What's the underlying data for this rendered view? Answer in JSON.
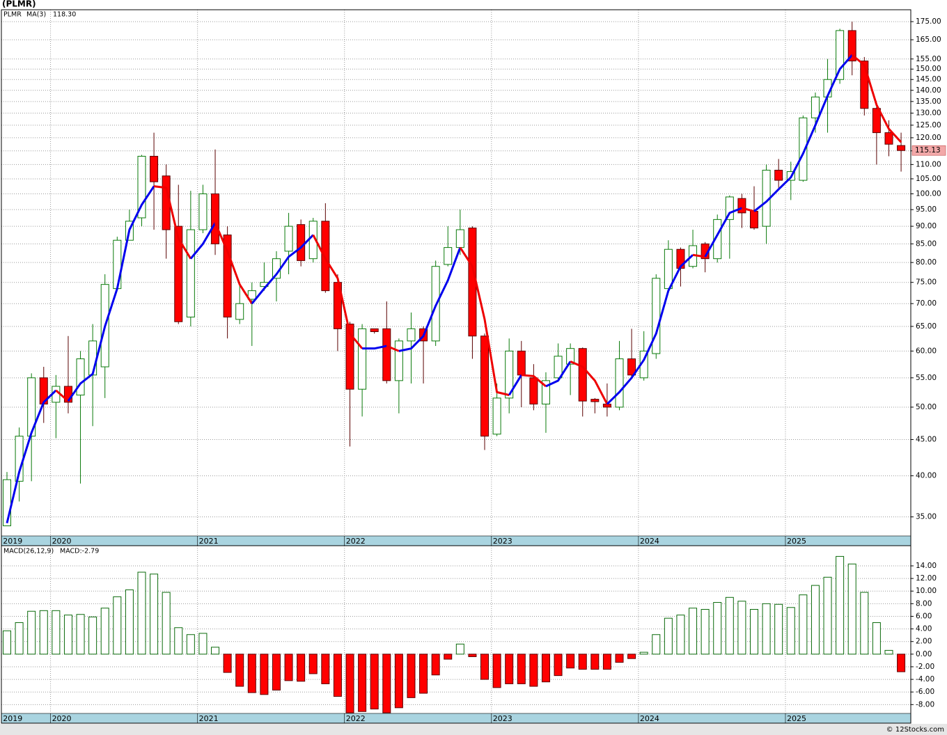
{
  "chart_data": [
    {
      "type": "candlestick",
      "title": "(PLMR)",
      "name": "PLMR",
      "log_scale": true,
      "grid": true,
      "up_color": "#0a7a0a",
      "down_color": "#ff0000",
      "categories": [
        "2019",
        null,
        null,
        null,
        "2020",
        null,
        null,
        null,
        null,
        null,
        null,
        null,
        null,
        null,
        null,
        null,
        "2021",
        null,
        null,
        null,
        null,
        null,
        null,
        null,
        null,
        null,
        null,
        null,
        "2022",
        null,
        null,
        null,
        null,
        null,
        null,
        null,
        null,
        null,
        null,
        null,
        "2023",
        null,
        null,
        null,
        null,
        null,
        null,
        null,
        null,
        null,
        null,
        null,
        "2024",
        null,
        null,
        null,
        null,
        null,
        null,
        null,
        null,
        null,
        null,
        null,
        "2025",
        null,
        null,
        null,
        null,
        null,
        null,
        null,
        null,
        null
      ],
      "open": [
        34,
        39.3,
        45.5,
        55,
        50.8,
        53.5,
        52,
        55.5,
        57,
        73.5,
        86,
        92.5,
        113,
        106,
        90,
        67,
        89,
        100,
        87.5,
        66.5,
        71,
        74,
        76,
        83,
        90.5,
        81,
        91.5,
        75,
        65.5,
        53,
        64.5,
        64.5,
        54.5,
        62,
        64.5,
        62,
        79.5,
        84,
        89.5,
        63,
        45.8,
        51.5,
        60,
        55,
        50.5,
        55,
        57.5,
        60.5,
        51.3,
        50.5,
        50,
        58.5,
        55,
        59.5,
        73.5,
        83.5,
        79,
        85,
        81,
        92,
        98.5,
        94.5,
        90,
        108,
        104.5,
        104.5,
        128,
        137,
        145,
        170,
        154,
        132,
        122,
        117
      ],
      "high": [
        40.5,
        46.8,
        55.8,
        57,
        55.5,
        63,
        60,
        65.5,
        77,
        87,
        95,
        113.5,
        122,
        110,
        103,
        101,
        103,
        115.5,
        90,
        75,
        75,
        80,
        83,
        94,
        92,
        92.5,
        97,
        77,
        66,
        65.5,
        64.5,
        70.5,
        62.5,
        68,
        65,
        80.5,
        90,
        95,
        90,
        63.5,
        54,
        62.5,
        62,
        57.5,
        56,
        61.5,
        61.5,
        60.7,
        51.5,
        54,
        62,
        64.5,
        64,
        77,
        86,
        84,
        89,
        85.5,
        93.5,
        99.5,
        100,
        102.5,
        110,
        112,
        111,
        129,
        139,
        155,
        171,
        175,
        156,
        133,
        127,
        122
      ],
      "low": [
        34,
        36.8,
        39.3,
        47.5,
        45.2,
        49,
        39,
        47,
        51.5,
        73.5,
        86,
        90,
        89,
        81,
        65.5,
        65,
        88,
        82,
        62.5,
        65.5,
        61,
        73,
        70.5,
        77,
        79,
        80,
        72.5,
        60,
        44,
        48.5,
        63.5,
        54,
        49,
        54,
        54,
        61,
        79,
        82,
        58.5,
        43.5,
        45.5,
        49,
        50,
        49.5,
        46,
        54.5,
        52,
        48.5,
        49,
        48.5,
        49.5,
        55,
        54.5,
        58.5,
        73,
        74,
        78.5,
        77.5,
        80,
        81,
        89.5,
        89,
        85,
        102,
        98,
        104,
        122,
        122,
        143,
        147,
        129,
        110,
        113,
        107.5
      ],
      "close": [
        39.5,
        45.5,
        55,
        50.5,
        53.5,
        50.8,
        58.5,
        62,
        74.5,
        86,
        91.5,
        113,
        104,
        89,
        66,
        89,
        100,
        85,
        67,
        70,
        73,
        75,
        81,
        90,
        80.5,
        91.5,
        73,
        64.5,
        53,
        64.5,
        63.9,
        54.5,
        62,
        64.5,
        62,
        79,
        84,
        89,
        63,
        45.5,
        51.5,
        60,
        55.5,
        50.5,
        54.5,
        59,
        60.5,
        51,
        50.9,
        50,
        58.5,
        55.5,
        60,
        76,
        83.5,
        78.5,
        84.5,
        81,
        92,
        99,
        94,
        89.5,
        108,
        104.5,
        107.5,
        128,
        137,
        145,
        170,
        154,
        132,
        122,
        117.5,
        115.13
      ],
      "series": [
        {
          "name": "MA(3)",
          "legend_value": "118.30",
          "up_color": "#0000ee",
          "down_color": "#ee0000",
          "values": [
            34.3,
            40.5,
            46,
            50.8,
            52.8,
            51,
            54,
            55.7,
            65,
            73.5,
            89,
            96.5,
            102.5,
            102,
            86.5,
            81,
            85,
            91,
            83,
            74.5,
            70,
            73.5,
            77,
            81.5,
            84,
            87.5,
            81,
            76,
            63.5,
            60.5,
            60.5,
            61,
            60,
            60.5,
            63,
            69.5,
            75.5,
            84,
            79,
            66.5,
            52.5,
            52,
            55.5,
            55.3,
            53.5,
            54.5,
            58,
            57,
            54.5,
            50.5,
            52.5,
            55,
            58.3,
            63.5,
            73,
            79,
            82,
            81.5,
            87.5,
            94,
            95.5,
            94.5,
            97.5,
            101.5,
            105.5,
            114,
            125,
            137.5,
            150,
            157,
            152,
            133.5,
            123.5,
            118.3
          ]
        }
      ],
      "ylim": [
        32.9,
        181.9
      ],
      "yticks": [
        {
          "value": 35,
          "label": "35.00"
        },
        {
          "value": 40,
          "label": "40.00"
        },
        {
          "value": 45,
          "label": "45.00"
        },
        {
          "value": 50,
          "label": "50.00"
        },
        {
          "value": 55,
          "label": "55.00"
        },
        {
          "value": 60,
          "label": "60.00"
        },
        {
          "value": 65,
          "label": "65.00"
        },
        {
          "value": 70,
          "label": "70.00"
        },
        {
          "value": 75,
          "label": "75.00"
        },
        {
          "value": 80,
          "label": "80.00"
        },
        {
          "value": 85,
          "label": "85.00"
        },
        {
          "value": 90,
          "label": "90.00"
        },
        {
          "value": 95,
          "label": "95.00"
        },
        {
          "value": 100,
          "label": "100.00"
        },
        {
          "value": 105,
          "label": "105.00"
        },
        {
          "value": 110,
          "label": "110.00"
        },
        {
          "value": 115,
          "label": "115.00"
        },
        {
          "value": 120,
          "label": "120.00"
        },
        {
          "value": 125,
          "label": "125.00"
        },
        {
          "value": 130,
          "label": "130.00"
        },
        {
          "value": 135,
          "label": "135.00"
        },
        {
          "value": 140,
          "label": "140.00"
        },
        {
          "value": 145,
          "label": "145.00"
        },
        {
          "value": 150,
          "label": "150.00"
        },
        {
          "value": 155,
          "label": "155.00"
        },
        {
          "value": 165,
          "label": "165.00"
        },
        {
          "value": 175,
          "label": "175.00"
        }
      ]
    },
    {
      "type": "bar",
      "name": "MACD(26,12,9)",
      "legend": "MACD:-2.79",
      "grid": true,
      "up_color": "#0a6a0a",
      "down_color": "#ff0000",
      "categories": [
        "2019",
        null,
        null,
        null,
        "2020",
        null,
        null,
        null,
        null,
        null,
        null,
        null,
        null,
        null,
        null,
        null,
        "2021",
        null,
        null,
        null,
        null,
        null,
        null,
        null,
        null,
        null,
        null,
        null,
        "2022",
        null,
        null,
        null,
        null,
        null,
        null,
        null,
        null,
        null,
        null,
        null,
        "2023",
        null,
        null,
        null,
        null,
        null,
        null,
        null,
        null,
        null,
        null,
        null,
        "2024",
        null,
        null,
        null,
        null,
        null,
        null,
        null,
        null,
        null,
        null,
        null,
        "2025",
        null,
        null,
        null,
        null,
        null,
        null,
        null,
        null,
        null
      ],
      "values": [
        3.7,
        5.0,
        6.8,
        6.9,
        6.9,
        6.2,
        6.3,
        5.9,
        7.3,
        9.1,
        10.2,
        13.0,
        12.7,
        9.8,
        4.2,
        3.1,
        3.3,
        1.1,
        -2.9,
        -5.1,
        -6.1,
        -6.4,
        -5.7,
        -4.2,
        -4.3,
        -3.1,
        -4.7,
        -6.7,
        -9.3,
        -9.1,
        -8.7,
        -9.3,
        -8.5,
        -6.9,
        -6.2,
        -3.3,
        -0.8,
        1.6,
        -0.4,
        -4.0,
        -5.3,
        -4.7,
        -4.7,
        -5.1,
        -4.4,
        -3.4,
        -2.2,
        -2.4,
        -2.4,
        -2.4,
        -1.3,
        -0.7,
        0.3,
        3.1,
        5.7,
        6.2,
        7.3,
        7.1,
        8.2,
        9.0,
        8.4,
        7.1,
        8.0,
        7.9,
        7.4,
        9.4,
        10.9,
        12.2,
        15.5,
        14.3,
        9.8,
        5.0,
        0.6,
        -2.79
      ],
      "ylim": [
        -9.4,
        17.2
      ],
      "yticks": [
        {
          "value": -8,
          "label": "-8.00"
        },
        {
          "value": -6,
          "label": "-6.00"
        },
        {
          "value": -4,
          "label": "-4.00"
        },
        {
          "value": -2,
          "label": "-2.00"
        },
        {
          "value": 0,
          "label": "0.00"
        },
        {
          "value": 2,
          "label": "2.00"
        },
        {
          "value": 4,
          "label": "4.00"
        },
        {
          "value": 6,
          "label": "6.00"
        },
        {
          "value": 8,
          "label": "8.00"
        },
        {
          "value": 10,
          "label": "10.00"
        },
        {
          "value": 12,
          "label": "12.00"
        },
        {
          "value": 14,
          "label": "14.00"
        }
      ]
    }
  ],
  "footer": "© 12Stocks.com"
}
